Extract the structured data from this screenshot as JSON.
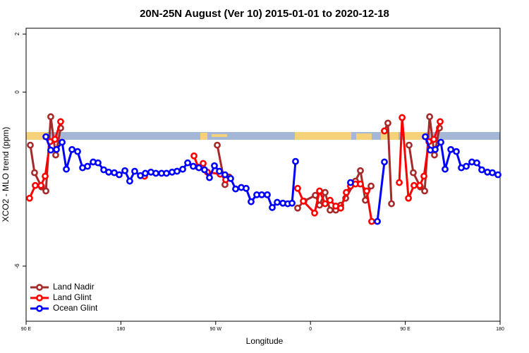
{
  "chart_data": {
    "type": "line",
    "title": "20N-25N August (Ver 10)   2015-01-01 to 2020-12-18",
    "x_label": "Longitude",
    "y_label": "XCO2 - MLO trend (ppm)",
    "xlim": [
      90,
      540
    ],
    "xticks": [
      {
        "value": 90,
        "label": "90 E"
      },
      {
        "value": 180,
        "label": "180"
      },
      {
        "value": 270,
        "label": "90 W"
      },
      {
        "value": 360,
        "label": "0"
      },
      {
        "value": 450,
        "label": "90 E"
      },
      {
        "value": 540,
        "label": "180"
      }
    ],
    "ylim": [
      -7.9,
      2.2
    ],
    "yticks": [
      -6,
      0,
      2
    ],
    "legend": "bottomleft",
    "series": [
      {
        "name": "Land Nadir",
        "color": "#a52a2a",
        "x": [
          94.0,
          98.0,
          104.7,
          108.8,
          113.4,
          118.1,
          122.8,
          null,
          271.5,
          278.8,
          282.9,
          null,
          347.8,
          353.8,
          364.6,
          368.6,
          373.9,
          378.6,
          384.0,
          388.7,
          393.4,
          402.7,
          407.4,
          412.1,
          417.5,
          null,
          430.2,
          433.5,
          436.9,
          null,
          453.6,
          457.6,
          464.3,
          468.4,
          473.1,
          477.7,
          482.4
        ],
        "values": [
          -1.83,
          -2.78,
          -3.27,
          -3.41,
          -0.85,
          -2.17,
          -1.24,
          null,
          -1.83,
          -3.19,
          -2.93,
          null,
          -4.0,
          -3.76,
          -3.56,
          -3.9,
          -3.46,
          -4.07,
          -4.07,
          -3.9,
          -3.66,
          -3.07,
          -2.71,
          -3.73,
          -3.24,
          null,
          -1.34,
          -1.07,
          -3.85,
          null,
          -1.83,
          -2.78,
          -3.27,
          -3.41,
          -0.85,
          -2.17,
          -1.24
        ]
      },
      {
        "name": "Land Glint",
        "color": "#ff0000",
        "x": [
          93.3,
          98.7,
          104.1,
          108.1,
          112.8,
          117.4,
          122.8,
          null,
          202.5,
          null,
          249.4,
          253.4,
          258.1,
          262.1,
          274.2,
          279.5,
          null,
          347.8,
          353.2,
          363.9,
          368.6,
          373.9,
          378.6,
          384.0,
          388.7,
          394.0,
          398.0,
          402.7,
          407.4,
          413.4,
          418.1,
          null,
          430.2,
          null,
          444.3,
          447.0,
          453.0,
          458.3,
          463.7,
          467.7,
          472.4,
          477.1,
          483.1
        ],
        "values": [
          -3.66,
          -3.22,
          -3.22,
          -2.9,
          -1.71,
          -1.63,
          -1.02,
          null,
          -2.9,
          null,
          -2.2,
          -2.59,
          -2.46,
          -2.76,
          -2.83,
          -3.02,
          null,
          -3.32,
          -3.76,
          -4.17,
          -3.41,
          -3.85,
          -3.73,
          -3.93,
          -4.0,
          -3.46,
          -3.24,
          -3.17,
          -3.17,
          -3.41,
          -4.46,
          null,
          -1.34,
          null,
          -3.12,
          -0.88,
          -3.66,
          -3.22,
          -3.22,
          -2.9,
          -1.71,
          -1.63,
          -1.02
        ]
      },
      {
        "name": "Ocean Glint",
        "color": "#0000ff",
        "x": [
          108.8,
          113.4,
          118.8,
          124.2,
          128.2,
          133.6,
          138.9,
          143.6,
          148.3,
          153.7,
          158.3,
          163.7,
          168.4,
          173.7,
          178.4,
          183.8,
          188.4,
          193.1,
          198.5,
          203.2,
          208.5,
          213.2,
          218.6,
          223.3,
          228.6,
          233.3,
          238.7,
          243.4,
          248.7,
          254.1,
          259.4,
          264.1,
          268.8,
          273.5,
          278.8,
          284.2,
          288.9,
          294.3,
          298.9,
          303.6,
          309.0,
          313.7,
          319.0,
          323.7,
          328.4,
          333.8,
          338.4,
          342.5,
          345.8,
          null,
          398.0,
          null,
          423.5,
          430.2,
          null,
          469.0,
          473.8,
          478.4,
          483.8,
          487.8,
          493.2,
          498.5,
          503.2,
          507.9,
          513.2,
          517.9,
          522.6,
          528.0,
          532.7,
          538.0
        ],
        "values": [
          -1.54,
          -2.0,
          -1.98,
          -1.73,
          -2.66,
          -1.98,
          -2.05,
          -2.61,
          -2.56,
          -2.41,
          -2.44,
          -2.68,
          -2.76,
          -2.78,
          -2.85,
          -2.71,
          -3.07,
          -2.73,
          -2.88,
          -2.8,
          -2.76,
          -2.8,
          -2.8,
          -2.8,
          -2.76,
          -2.73,
          -2.66,
          -2.44,
          -2.56,
          -2.61,
          -2.68,
          -2.95,
          -2.54,
          -2.73,
          -2.85,
          -2.98,
          -3.34,
          -3.29,
          -3.32,
          -3.78,
          -3.54,
          -3.54,
          -3.54,
          -3.98,
          -3.8,
          -3.83,
          -3.85,
          -3.83,
          -2.39,
          null,
          -3.12,
          null,
          -4.46,
          -2.41,
          null,
          -1.54,
          -2.0,
          -1.98,
          -1.73,
          -2.66,
          -1.98,
          -2.05,
          -2.61,
          -2.56,
          -2.41,
          -2.44,
          -2.68,
          -2.76,
          -2.78,
          -2.85
        ]
      }
    ]
  }
}
